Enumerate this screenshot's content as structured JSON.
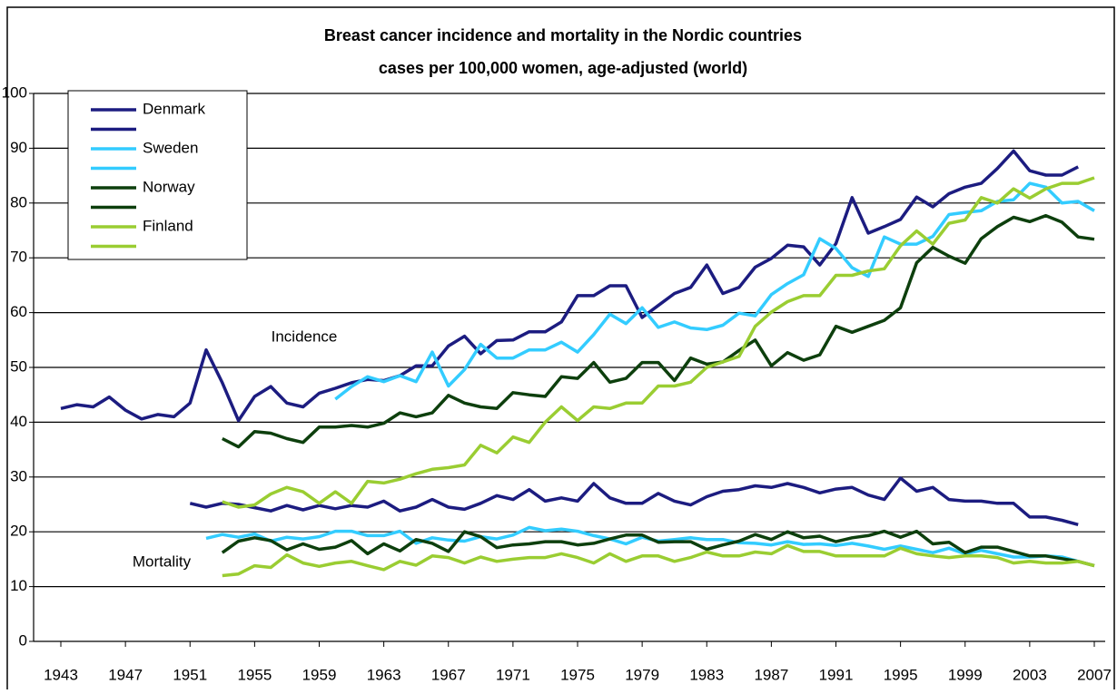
{
  "chart_data": {
    "type": "line",
    "title": "Breast cancer incidence and mortality in the Nordic countries",
    "subtitle": "cases per 100,000 women, age-adjusted (world)",
    "annotations": [
      "Incidence",
      "Mortality"
    ],
    "x": [
      1943,
      1944,
      1945,
      1946,
      1947,
      1948,
      1949,
      1950,
      1951,
      1952,
      1953,
      1954,
      1955,
      1956,
      1957,
      1958,
      1959,
      1960,
      1961,
      1962,
      1963,
      1964,
      1965,
      1966,
      1967,
      1968,
      1969,
      1970,
      1971,
      1972,
      1973,
      1974,
      1975,
      1976,
      1977,
      1978,
      1979,
      1980,
      1981,
      1982,
      1983,
      1984,
      1985,
      1986,
      1987,
      1988,
      1989,
      1990,
      1991,
      1992,
      1993,
      1994,
      1995,
      1996,
      1997,
      1998,
      1999,
      2000,
      2001,
      2002,
      2003,
      2004,
      2005,
      2006,
      2007
    ],
    "xlim": [
      1943,
      2007
    ],
    "xticks": [
      1943,
      1947,
      1951,
      1955,
      1959,
      1963,
      1967,
      1971,
      1975,
      1979,
      1983,
      1987,
      1991,
      1995,
      1999,
      2003,
      2007
    ],
    "ylim": [
      0,
      100
    ],
    "yticks": [
      0,
      10,
      20,
      30,
      40,
      50,
      60,
      70,
      80,
      90,
      100
    ],
    "grid": true,
    "legend": "top-left",
    "series": [
      {
        "name": "Denmark",
        "color": "#1c1c80",
        "values": [
          42.5,
          43.2,
          42.8,
          44.6,
          42.2,
          40.6,
          41.4,
          41.0,
          43.5,
          53.2,
          47.2,
          40.3,
          44.7,
          46.5,
          43.5,
          42.8,
          45.3,
          46.2,
          47.2,
          47.8,
          47.6,
          48.5,
          50.3,
          50.3,
          53.9,
          55.7,
          52.5,
          54.9,
          55.0,
          56.5,
          56.5,
          58.3,
          63.1,
          63.1,
          64.9,
          64.9,
          59.1,
          61.3,
          63.5,
          64.6,
          68.7,
          63.5,
          64.6,
          68.3,
          69.9,
          72.3,
          72.0,
          68.7,
          72.6,
          81.0,
          74.5,
          75.7,
          77.0,
          81.1,
          79.3,
          81.7,
          82.9,
          83.6,
          86.3,
          89.5,
          85.9,
          85.1,
          85.1,
          86.6,
          null
        ]
      },
      {
        "color": "#1c1c80",
        "values": [
          null,
          null,
          null,
          null,
          null,
          null,
          null,
          null,
          25.2,
          24.5,
          25.2,
          25.0,
          24.4,
          23.8,
          24.8,
          24.0,
          24.8,
          24.2,
          24.8,
          24.5,
          25.6,
          23.8,
          24.5,
          25.9,
          24.5,
          24.1,
          25.2,
          26.6,
          25.9,
          27.7,
          25.6,
          26.2,
          25.6,
          28.8,
          26.2,
          25.2,
          25.2,
          27.0,
          25.6,
          24.9,
          26.4,
          27.4,
          27.7,
          28.4,
          28.1,
          28.8,
          28.1,
          27.1,
          27.8,
          28.1,
          26.7,
          25.9,
          29.8,
          27.4,
          28.1,
          25.9,
          25.6,
          25.6,
          25.2,
          25.2,
          22.7,
          22.7,
          22.1,
          21.3,
          null
        ]
      },
      {
        "name": "Sweden",
        "color": "#33ccff",
        "values": [
          null,
          null,
          null,
          null,
          null,
          null,
          null,
          null,
          null,
          null,
          null,
          null,
          null,
          null,
          null,
          null,
          null,
          44.2,
          46.5,
          48.3,
          47.4,
          48.5,
          47.4,
          52.8,
          46.6,
          49.6,
          54.2,
          51.7,
          51.7,
          53.2,
          53.2,
          54.6,
          52.8,
          56.0,
          59.7,
          58.0,
          60.9,
          57.3,
          58.3,
          57.2,
          56.9,
          57.7,
          59.9,
          59.4,
          63.3,
          65.3,
          66.9,
          73.5,
          71.7,
          68.2,
          66.6,
          73.8,
          72.5,
          72.5,
          73.9,
          77.9,
          78.3,
          78.6,
          80.3,
          80.6,
          83.6,
          82.9,
          80.0,
          80.3,
          78.6
        ]
      },
      {
        "color": "#33ccff",
        "values": [
          null,
          null,
          null,
          null,
          null,
          null,
          null,
          null,
          null,
          18.8,
          19.5,
          19.0,
          19.6,
          18.3,
          19.0,
          18.7,
          19.1,
          20.1,
          20.1,
          19.3,
          19.3,
          20.1,
          17.9,
          18.9,
          18.5,
          18.3,
          19.1,
          18.7,
          19.4,
          20.8,
          20.2,
          20.5,
          20.1,
          19.3,
          18.7,
          17.8,
          19.0,
          18.3,
          18.6,
          18.9,
          18.6,
          18.6,
          18.0,
          17.9,
          17.6,
          18.2,
          17.7,
          17.8,
          17.5,
          17.9,
          17.4,
          16.8,
          17.4,
          16.8,
          16.2,
          17.0,
          16.0,
          16.6,
          16.0,
          15.4,
          15.4,
          15.6,
          15.4,
          14.6,
          null
        ]
      },
      {
        "name": "Norway",
        "color": "#0d3f0d",
        "values": [
          null,
          null,
          null,
          null,
          null,
          null,
          null,
          null,
          null,
          null,
          37.0,
          35.5,
          38.3,
          38.0,
          37.0,
          36.3,
          39.1,
          39.1,
          39.4,
          39.1,
          39.8,
          41.7,
          41.0,
          41.7,
          44.9,
          43.5,
          42.8,
          42.5,
          45.4,
          45.0,
          44.7,
          48.3,
          48.0,
          50.9,
          47.3,
          48.0,
          50.9,
          50.9,
          47.6,
          51.7,
          50.6,
          51.0,
          53.1,
          55.0,
          50.3,
          52.7,
          51.3,
          52.3,
          57.5,
          56.4,
          57.5,
          58.6,
          60.9,
          69.1,
          71.9,
          70.3,
          69.0,
          73.5,
          75.7,
          77.4,
          76.6,
          77.7,
          76.5,
          73.8,
          73.4
        ]
      },
      {
        "color": "#0d3f0d",
        "values": [
          null,
          null,
          null,
          null,
          null,
          null,
          null,
          null,
          null,
          null,
          16.2,
          18.3,
          18.9,
          18.4,
          16.7,
          17.8,
          16.8,
          17.2,
          18.4,
          16.0,
          17.8,
          16.5,
          18.6,
          17.9,
          16.4,
          20.0,
          19.1,
          17.1,
          17.6,
          17.8,
          18.2,
          18.2,
          17.6,
          17.9,
          18.7,
          19.4,
          19.4,
          18.1,
          18.2,
          18.2,
          16.8,
          17.6,
          18.3,
          19.5,
          18.6,
          20.0,
          18.9,
          19.2,
          18.2,
          18.9,
          19.3,
          20.1,
          19.0,
          20.1,
          17.8,
          18.1,
          16.2,
          17.2,
          17.2,
          16.4,
          15.6,
          15.6,
          15.1,
          14.6,
          13.8
        ]
      },
      {
        "name": "Finland",
        "color": "#9acd32",
        "values": [
          null,
          null,
          null,
          null,
          null,
          null,
          null,
          null,
          null,
          null,
          25.5,
          24.5,
          24.9,
          26.9,
          28.1,
          27.3,
          25.2,
          27.3,
          25.2,
          29.2,
          28.9,
          29.6,
          30.6,
          31.4,
          31.7,
          32.2,
          35.8,
          34.4,
          37.3,
          36.3,
          40.0,
          42.8,
          40.3,
          42.8,
          42.5,
          43.5,
          43.5,
          46.6,
          46.6,
          47.3,
          50.0,
          51.0,
          52.0,
          57.5,
          60.1,
          62.0,
          63.1,
          63.1,
          66.8,
          66.8,
          67.6,
          68.0,
          72.2,
          74.9,
          72.5,
          76.3,
          76.9,
          81.0,
          80.0,
          82.6,
          80.9,
          82.6,
          83.6,
          83.6,
          84.6
        ]
      },
      {
        "color": "#9acd32",
        "values": [
          null,
          null,
          null,
          null,
          null,
          null,
          null,
          null,
          null,
          null,
          12.0,
          12.3,
          13.8,
          13.5,
          15.8,
          14.3,
          13.7,
          14.3,
          14.6,
          13.8,
          13.1,
          14.6,
          13.9,
          15.6,
          15.3,
          14.3,
          15.4,
          14.6,
          15.0,
          15.3,
          15.3,
          16.0,
          15.3,
          14.3,
          16.0,
          14.6,
          15.6,
          15.6,
          14.6,
          15.3,
          16.3,
          15.6,
          15.6,
          16.3,
          16.0,
          17.5,
          16.4,
          16.4,
          15.6,
          15.6,
          15.6,
          15.6,
          17.0,
          16.0,
          15.6,
          15.3,
          15.6,
          15.6,
          15.3,
          14.3,
          14.6,
          14.3,
          14.3,
          14.6,
          13.8
        ]
      }
    ]
  }
}
